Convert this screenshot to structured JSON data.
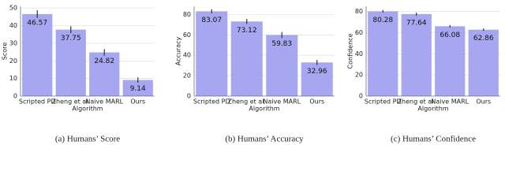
{
  "chart_data": [
    {
      "type": "bar",
      "caption": "(a) Humans’ Score",
      "xlabel": "Algorithm",
      "ylabel": "Score",
      "categories": [
        "Scripted PD",
        "Zheng et al.",
        "Naive MARL",
        "Ours"
      ],
      "values": [
        46.57,
        37.75,
        24.82,
        9.14
      ],
      "errors": [
        2.2,
        2.0,
        1.8,
        1.5
      ],
      "color": "#9d9df0",
      "ylim": [
        0,
        51
      ],
      "yticks": [
        0,
        10,
        20,
        30,
        40,
        50
      ],
      "grid": true
    },
    {
      "type": "bar",
      "caption": "(b) Humans’ Accuracy",
      "xlabel": "Algorithm",
      "ylabel": "Accuracy",
      "categories": [
        "Scripted PD",
        "Zheng et al.",
        "Naive MARL",
        "Ours"
      ],
      "values": [
        83.07,
        73.12,
        59.83,
        32.96
      ],
      "errors": [
        2.0,
        2.5,
        3.0,
        2.5
      ],
      "color": "#9d9df0",
      "ylim": [
        0,
        88
      ],
      "yticks": [
        0,
        20,
        40,
        60,
        80
      ],
      "grid": true
    },
    {
      "type": "bar",
      "caption": "(c) Humans’ Confidence",
      "xlabel": "Algorithm",
      "ylabel": "Confidence",
      "categories": [
        "Scripted PD",
        "Zheng et al.",
        "Naive MARL",
        "Ours"
      ],
      "values": [
        80.28,
        77.64,
        66.08,
        62.86
      ],
      "errors": [
        1.2,
        1.5,
        1.2,
        1.2
      ],
      "color": "#9d9df0",
      "ylim": [
        0,
        85
      ],
      "yticks": [
        0,
        20,
        40,
        60,
        80
      ],
      "grid": true
    }
  ]
}
